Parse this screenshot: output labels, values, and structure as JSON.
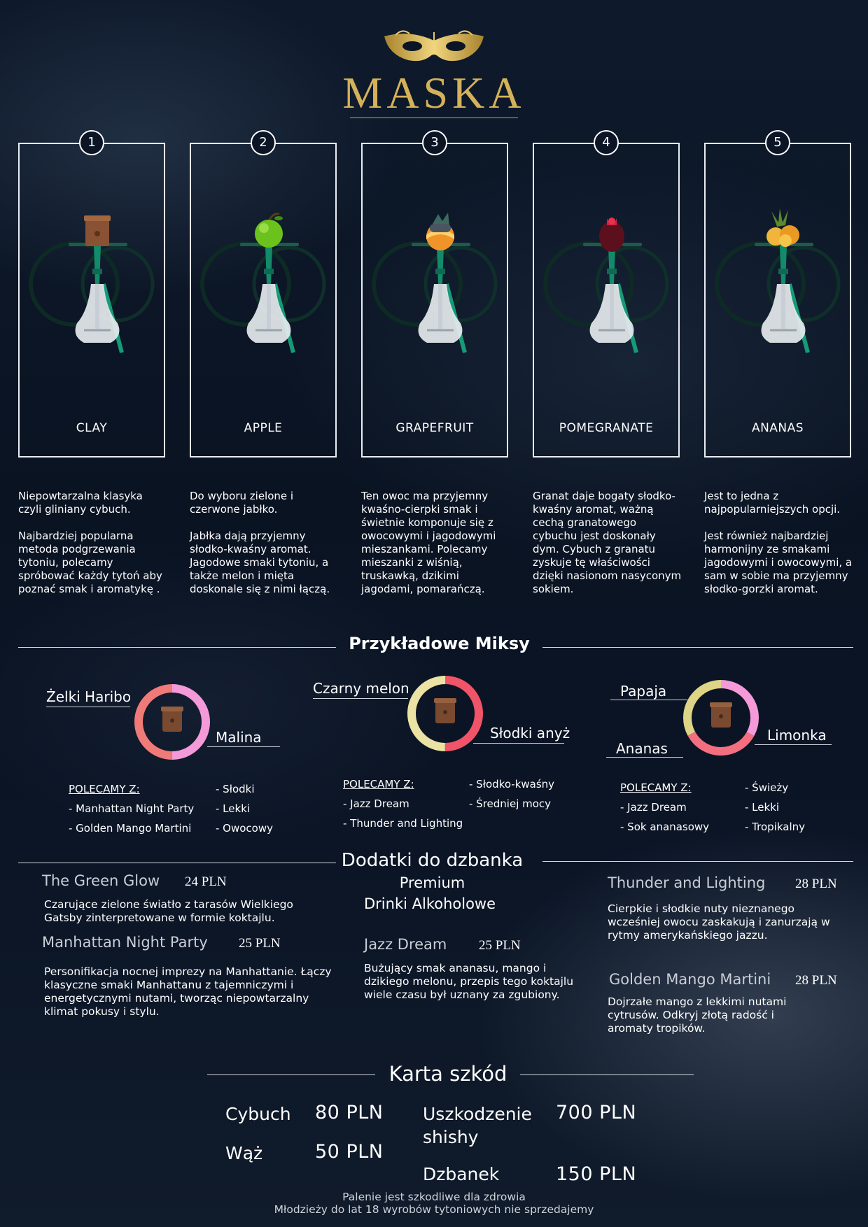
{
  "brand": {
    "name": "MASKA",
    "color": "#d4b25a"
  },
  "products": [
    {
      "number": "1",
      "name": "CLAY",
      "bowl": "clay-bowl-icon",
      "desc": [
        "Niepowtarzalna klasyka czyli gliniany cybuch.",
        "Najbardziej popularna metoda podgrzewania tytoniu, polecamy spróbować każdy tytoń aby poznać smak i aromatykę ."
      ]
    },
    {
      "number": "2",
      "name": "APPLE",
      "bowl": "apple-bowl-icon",
      "desc": [
        "Do wyboru zielone  i czerwone jabłko.",
        "Jabłka  dają przyjemny słodko-kwaśny aromat. Jagodowe smaki tytoniu, a także melon i mięta doskonale się z nimi łączą."
      ]
    },
    {
      "number": "3",
      "name": "GRAPEFRUIT",
      "bowl": "grapefruit-bowl-icon",
      "desc": [
        "Ten owoc ma przyjemny kwaśno-cierpki smak i świetnie komponuje się z owocowymi i jagodowymi mieszankami. Polecamy mieszanki z wiśnią, truskawką, dzikimi jagodami, pomarańczą."
      ]
    },
    {
      "number": "4",
      "name": "POMEGRANATE",
      "bowl": "pomegranate-bowl-icon",
      "desc": [
        "Granat daje bogaty słodko-kwaśny aromat, ważną cechą granatowego cybuchu jest doskonały dym. Cybuch z granatu zyskuje tę właściwości dzięki nasionom nasyconym sokiem."
      ]
    },
    {
      "number": "5",
      "name": "ANANAS",
      "bowl": "pineapple-bowl-icon",
      "desc": [
        "Jest to jedna z najpopularniejszych opcji.",
        "Jest również najbardziej harmonijny ze smakami jagodowymi i owocowymi, a sam w sobie ma przyjemny słodko-gorzki aromat."
      ]
    }
  ],
  "mixes_title": "Przykładowe Miksy",
  "mixes": [
    {
      "left": "Żelki Haribo",
      "right": "Malina",
      "colors": [
        "#f49ad8",
        "#f07a78"
      ],
      "split": [
        50,
        50
      ],
      "recommend_title": "POLECAMY Z:",
      "recommend": [
        "- Manhattan Night Party",
        "- Golden Mango Martini"
      ],
      "traits": [
        "- Słodki",
        "- Lekki",
        "- Owocowy"
      ]
    },
    {
      "left": "Czarny melon",
      "right": "Słodki anyż",
      "colors": [
        "#f05468",
        "#ebe3a4"
      ],
      "split": [
        50,
        50
      ],
      "recommend_title": "POLECAMY Z:",
      "recommend": [
        "- Jazz Dream",
        "- Thunder and Lighting"
      ],
      "traits": [
        "- Słodko-kwaśny",
        "- Średniej mocy"
      ]
    },
    {
      "left": "Papaja",
      "bottom": "Ananas",
      "right": "Limonka",
      "colors": [
        "#f49ad8",
        "#f36f7f",
        "#ddd486"
      ],
      "split": [
        33,
        34,
        33
      ],
      "recommend_title": "POLECAMY Z:",
      "recommend": [
        "- Jazz Dream",
        "- Sok ananasowy"
      ],
      "traits": [
        "- Świeży",
        "- Lekki",
        "- Tropikalny"
      ]
    }
  ],
  "addons": {
    "title": "Dodatki do dzbanka",
    "subtitle": "Premium",
    "subtitle2": "Drinki Alkoholowe",
    "drinks": [
      {
        "name": "The Green Glow",
        "price": "24 PLN",
        "desc": "Czarujące zielone światło z tarasów Wielkiego Gatsby zinterpretowane w formie koktajlu."
      },
      {
        "name": "Manhattan Night Party",
        "price": "25 PLN",
        "desc": "Personifikacja nocnej imprezy na Manhattanie. Łączy klasyczne smaki Manhattanu z tajemniczymi i energetycznymi nutami, tworząc niepowtarzalny klimat pokusy i stylu."
      },
      {
        "name": "Jazz Dream",
        "price": "25 PLN",
        "desc": "Bużujący smak ananasu, mango i dzikiego melonu, przepis tego koktajlu wiele czasu był uznany za zgubiony."
      },
      {
        "name": "Thunder and Lighting",
        "price": "28 PLN",
        "desc": "Cierpkie i słodkie nuty nieznanego wcześniej owocu zaskakują i zanurzają w rytmy amerykańskiego jazzu."
      },
      {
        "name": "Golden Mango Martini",
        "price": "28 PLN",
        "desc": "Dojrzałe mango z lekkimi nutami cytrusów. Odkryj złotą radość i aromaty tropików."
      }
    ]
  },
  "damages": {
    "title": "Karta szkód",
    "items": [
      {
        "name": "Cybuch",
        "price": "80 PLN"
      },
      {
        "name": "Wąż",
        "price": "50 PLN"
      },
      {
        "name": "Uszkodzenie shishy",
        "price": "700 PLN"
      },
      {
        "name": "Dzbanek",
        "price": "150 PLN"
      }
    ]
  },
  "footer": {
    "line1": "Palenie jest szkodliwe dla zdrowia",
    "line2": "Młodzieży do lat 18 wyrobów tytoniowych nie sprzedajemy"
  }
}
